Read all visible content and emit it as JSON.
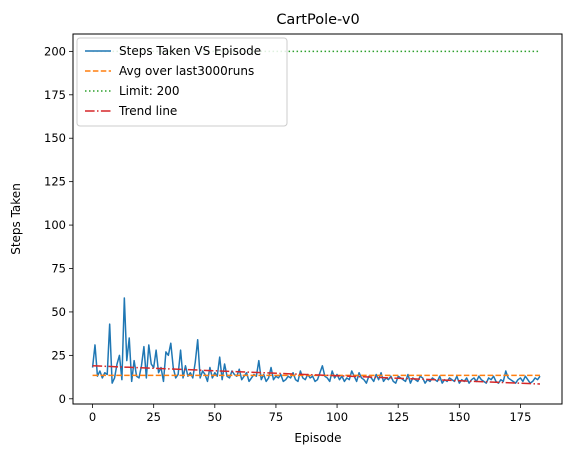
{
  "chart_data": {
    "type": "line",
    "title": "CartPole-v0",
    "xlabel": "Episode",
    "ylabel": "Steps Taken",
    "xlim": [
      -8,
      192
    ],
    "ylim": [
      -3,
      210
    ],
    "xticks": [
      0,
      25,
      50,
      75,
      100,
      125,
      150,
      175
    ],
    "yticks": [
      0,
      25,
      50,
      75,
      100,
      125,
      150,
      175,
      200
    ],
    "grid": false,
    "legend_position": "top-left",
    "series": [
      {
        "name": "Steps Taken VS Episode",
        "style": "solid",
        "color": "#1f77b4",
        "x": [
          0,
          1,
          2,
          3,
          4,
          5,
          6,
          7,
          8,
          9,
          10,
          11,
          12,
          13,
          14,
          15,
          16,
          17,
          18,
          19,
          20,
          21,
          22,
          23,
          24,
          25,
          26,
          27,
          28,
          29,
          30,
          31,
          32,
          33,
          34,
          35,
          36,
          37,
          38,
          39,
          40,
          41,
          42,
          43,
          44,
          45,
          46,
          47,
          48,
          49,
          50,
          51,
          52,
          53,
          54,
          55,
          56,
          57,
          58,
          59,
          60,
          61,
          62,
          63,
          64,
          65,
          66,
          67,
          68,
          69,
          70,
          71,
          72,
          73,
          74,
          75,
          76,
          77,
          78,
          79,
          80,
          81,
          82,
          83,
          84,
          85,
          86,
          87,
          88,
          89,
          90,
          91,
          92,
          93,
          94,
          95,
          96,
          97,
          98,
          99,
          100,
          101,
          102,
          103,
          104,
          105,
          106,
          107,
          108,
          109,
          110,
          111,
          112,
          113,
          114,
          115,
          116,
          117,
          118,
          119,
          120,
          121,
          122,
          123,
          124,
          125,
          126,
          127,
          128,
          129,
          130,
          131,
          132,
          133,
          134,
          135,
          136,
          137,
          138,
          139,
          140,
          141,
          142,
          143,
          144,
          145,
          146,
          147,
          148,
          149,
          150,
          151,
          152,
          153,
          154,
          155,
          156,
          157,
          158,
          159,
          160,
          161,
          162,
          163,
          164,
          165,
          166,
          167,
          168,
          169,
          170,
          171,
          172,
          173,
          174,
          175,
          176,
          177,
          178,
          179,
          180,
          181,
          182,
          183
        ],
        "values": [
          18,
          31,
          13,
          16,
          12,
          15,
          14,
          43,
          9,
          12,
          20,
          25,
          11,
          58,
          22,
          35,
          10,
          22,
          13,
          12,
          19,
          30,
          12,
          31,
          20,
          18,
          28,
          15,
          18,
          10,
          27,
          25,
          32,
          18,
          12,
          14,
          28,
          12,
          19,
          13,
          15,
          12,
          21,
          34,
          12,
          16,
          14,
          10,
          18,
          12,
          15,
          13,
          24,
          11,
          20,
          13,
          12,
          16,
          14,
          13,
          17,
          11,
          13,
          15,
          10,
          12,
          14,
          13,
          22,
          11,
          14,
          10,
          12,
          18,
          11,
          13,
          12,
          14,
          10,
          11,
          13,
          12,
          15,
          11,
          10,
          16,
          12,
          11,
          14,
          12,
          13,
          10,
          11,
          15,
          19,
          13,
          12,
          10,
          16,
          12,
          14,
          11,
          13,
          10,
          12,
          11,
          16,
          13,
          10,
          15,
          12,
          11,
          9,
          13,
          12,
          10,
          14,
          11,
          15,
          10,
          12,
          11,
          13,
          10,
          9,
          13,
          12,
          11,
          10,
          14,
          9,
          12,
          11,
          10,
          13,
          12,
          9,
          11,
          10,
          12,
          11,
          10,
          13,
          9,
          11,
          10,
          12,
          11,
          10,
          13,
          9,
          11,
          10,
          12,
          9,
          11,
          12,
          10,
          13,
          11,
          10,
          9,
          12,
          11,
          13,
          10,
          9,
          11,
          10,
          16,
          12,
          11,
          10,
          9,
          11,
          12,
          10,
          13,
          11,
          9,
          10,
          12,
          11,
          13
        ]
      },
      {
        "name": "Avg over last3000runs",
        "style": "dashed",
        "color": "#ff7f0e",
        "x": [
          0,
          183
        ],
        "values": [
          13.5,
          13.5
        ]
      },
      {
        "name": "Limit: 200",
        "style": "dotted",
        "color": "#2ca02c",
        "x": [
          0,
          183
        ],
        "values": [
          200,
          200
        ]
      },
      {
        "name": "Trend line",
        "style": "dashdot",
        "color": "#d62728",
        "x": [
          0,
          183
        ],
        "values": [
          19,
          8.5
        ]
      }
    ]
  }
}
